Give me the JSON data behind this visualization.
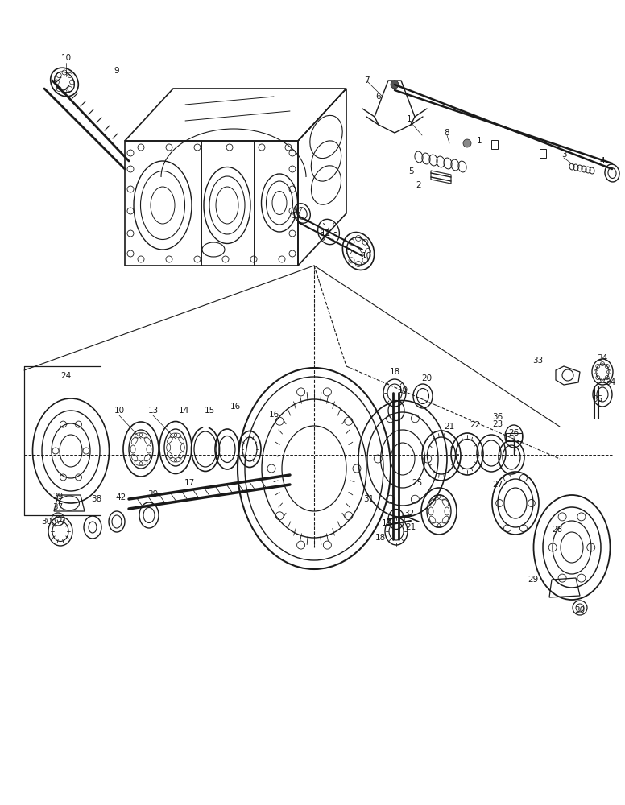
{
  "background_color": "#ffffff",
  "line_color": "#1a1a1a",
  "text_color": "#1a1a1a",
  "fig_width": 7.76,
  "fig_height": 10.0,
  "dpi": 100
}
